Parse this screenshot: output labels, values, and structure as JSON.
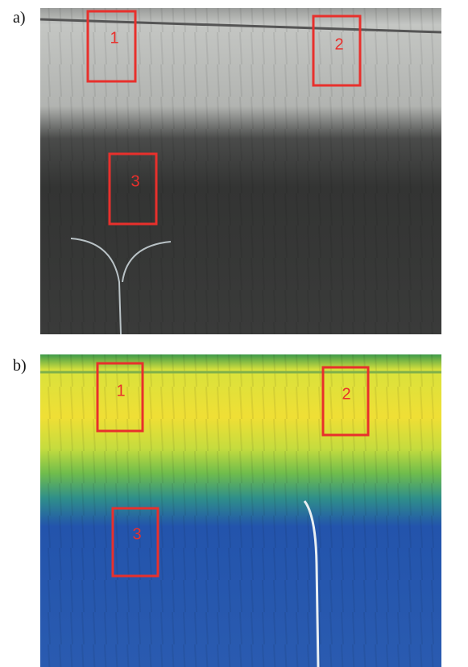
{
  "panels": [
    {
      "label": "a)",
      "boxes": [
        {
          "label": "1"
        },
        {
          "label": "2"
        },
        {
          "label": "3"
        }
      ]
    },
    {
      "label": "b)",
      "boxes": [
        {
          "label": "1"
        },
        {
          "label": "2"
        },
        {
          "label": "3"
        }
      ]
    }
  ]
}
